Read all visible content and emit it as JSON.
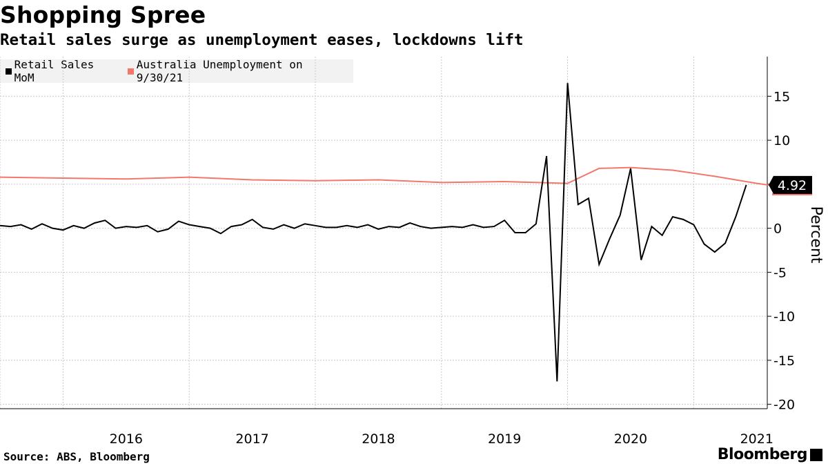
{
  "header": {
    "title": "Shopping Spree",
    "subtitle": "Retail sales surge as unemployment eases, lockdowns lift"
  },
  "footer": {
    "source": "Source: ABS, Bloomberg",
    "brand": "Bloomberg"
  },
  "colors": {
    "retail": "#000000",
    "unemployment": "#f4776b",
    "legend_bg": "#f2f2f2",
    "grid": "#c8c8c8"
  },
  "chart_data": {
    "type": "line",
    "title": "Shopping Spree",
    "subtitle": "Retail sales surge as unemployment eases, lockdowns lift",
    "ylabel": "Percent",
    "xlabel": "",
    "x_range": [
      "2015-07",
      "2021-08"
    ],
    "ylim": [
      -20.5,
      19.5
    ],
    "yticks": [
      15,
      10,
      5,
      0,
      -5,
      -10,
      -15,
      -20
    ],
    "ytick_labels": [
      "15",
      "10",
      "5",
      "0",
      "-5",
      "-10",
      "-15",
      "-20"
    ],
    "year_labels": [
      "2016",
      "2017",
      "2018",
      "2019",
      "2020",
      "2021"
    ],
    "grid": true,
    "legend_position": "top-left",
    "last_value_label": "4.92",
    "series": [
      {
        "name": "Retail Sales MoM",
        "color": "#000000",
        "points": [
          [
            "2015-07",
            0.3
          ],
          [
            "2015-08",
            0.2
          ],
          [
            "2015-09",
            0.4
          ],
          [
            "2015-10",
            -0.1
          ],
          [
            "2015-11",
            0.5
          ],
          [
            "2015-12",
            0.0
          ],
          [
            "2016-01",
            -0.2
          ],
          [
            "2016-02",
            0.3
          ],
          [
            "2016-03",
            0.0
          ],
          [
            "2016-04",
            0.6
          ],
          [
            "2016-05",
            0.9
          ],
          [
            "2016-06",
            0.0
          ],
          [
            "2016-07",
            0.2
          ],
          [
            "2016-08",
            0.1
          ],
          [
            "2016-09",
            0.3
          ],
          [
            "2016-10",
            -0.4
          ],
          [
            "2016-11",
            -0.1
          ],
          [
            "2016-12",
            0.8
          ],
          [
            "2017-01",
            0.4
          ],
          [
            "2017-02",
            0.2
          ],
          [
            "2017-03",
            0.0
          ],
          [
            "2017-04",
            -0.6
          ],
          [
            "2017-05",
            0.2
          ],
          [
            "2017-06",
            0.4
          ],
          [
            "2017-07",
            1.0
          ],
          [
            "2017-08",
            0.1
          ],
          [
            "2017-09",
            -0.1
          ],
          [
            "2017-10",
            0.4
          ],
          [
            "2017-11",
            0.0
          ],
          [
            "2017-12",
            0.5
          ],
          [
            "2018-01",
            0.3
          ],
          [
            "2018-02",
            0.1
          ],
          [
            "2018-03",
            0.1
          ],
          [
            "2018-04",
            0.3
          ],
          [
            "2018-05",
            0.1
          ],
          [
            "2018-06",
            0.4
          ],
          [
            "2018-07",
            -0.1
          ],
          [
            "2018-08",
            0.2
          ],
          [
            "2018-09",
            0.1
          ],
          [
            "2018-10",
            0.6
          ],
          [
            "2018-11",
            0.2
          ],
          [
            "2018-12",
            0.0
          ],
          [
            "2019-01",
            0.1
          ],
          [
            "2019-02",
            0.2
          ],
          [
            "2019-03",
            0.1
          ],
          [
            "2019-04",
            0.4
          ],
          [
            "2019-05",
            0.1
          ],
          [
            "2019-06",
            0.2
          ],
          [
            "2019-07",
            0.9
          ],
          [
            "2019-08",
            -0.5
          ],
          [
            "2019-09",
            -0.5
          ],
          [
            "2019-10",
            0.5
          ],
          [
            "2019-11",
            8.2
          ],
          [
            "2019-12",
            -17.4
          ],
          [
            "2020-01",
            16.5
          ],
          [
            "2020-02",
            2.7
          ],
          [
            "2020-03",
            3.4
          ],
          [
            "2020-04",
            -4.1
          ],
          [
            "2020-05",
            -1.2
          ],
          [
            "2020-06",
            1.5
          ],
          [
            "2020-07",
            6.8
          ],
          [
            "2020-08",
            -3.6
          ],
          [
            "2020-09",
            0.2
          ],
          [
            "2020-10",
            -0.8
          ],
          [
            "2020-11",
            1.3
          ],
          [
            "2020-12",
            1.0
          ],
          [
            "2021-01",
            0.4
          ],
          [
            "2021-02",
            -1.8
          ],
          [
            "2021-03",
            -2.7
          ],
          [
            "2021-04",
            -1.7
          ],
          [
            "2021-05",
            1.3
          ],
          [
            "2021-06",
            4.92
          ]
        ]
      },
      {
        "name": "Australia Unemployment on 9/30/21",
        "color": "#f4776b",
        "points": [
          [
            "2015-07",
            5.8
          ],
          [
            "2016-01",
            5.7
          ],
          [
            "2016-07",
            5.6
          ],
          [
            "2017-01",
            5.8
          ],
          [
            "2017-07",
            5.5
          ],
          [
            "2018-01",
            5.4
          ],
          [
            "2018-07",
            5.5
          ],
          [
            "2019-01",
            5.2
          ],
          [
            "2019-07",
            5.3
          ],
          [
            "2020-01",
            5.1
          ],
          [
            "2020-04",
            6.8
          ],
          [
            "2020-07",
            6.9
          ],
          [
            "2020-11",
            6.6
          ],
          [
            "2021-03",
            5.9
          ],
          [
            "2021-07",
            5.1
          ],
          [
            "2021-10",
            4.6
          ]
        ]
      }
    ]
  }
}
